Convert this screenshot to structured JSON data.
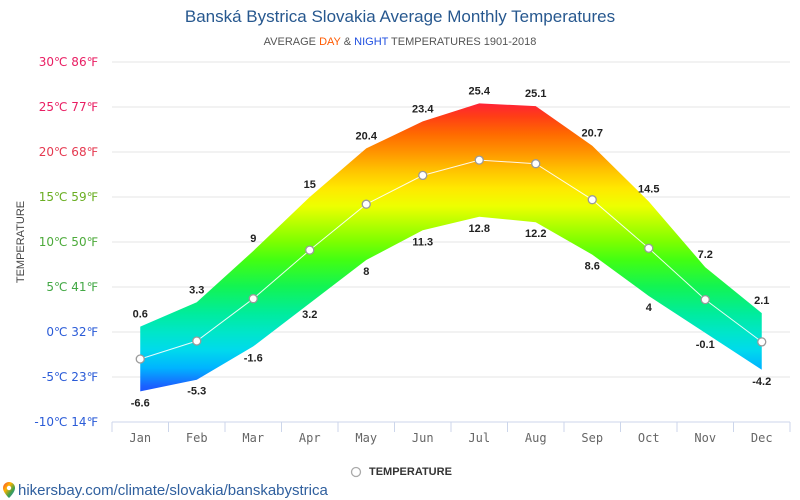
{
  "chart_data": {
    "type": "area",
    "title": "Banská Bystrica Slovakia Average Monthly Temperatures",
    "subtitle": {
      "start": "AVERAGE",
      "middle": "&",
      "end": "TEMPERATURES 1901-2018"
    },
    "ylabel": "TEMPERATURE",
    "ylim": [
      -10,
      30
    ],
    "y_ticks": [
      {
        "value": 30,
        "label": "30℃ 86℉",
        "color": "#e91e63"
      },
      {
        "value": 25,
        "label": "25℃ 77℉",
        "color": "#e91e63"
      },
      {
        "value": 20,
        "label": "20℃ 68℉",
        "color": "#e53950"
      },
      {
        "value": 15,
        "label": "15℃ 59℉",
        "color": "#6aae22"
      },
      {
        "value": 10,
        "label": "10℃ 50℉",
        "color": "#4caa3a"
      },
      {
        "value": 5,
        "label": "5℃ 41℉",
        "color": "#43a845"
      },
      {
        "value": 0,
        "label": "0℃ 32℉",
        "color": "#2a5bd7"
      },
      {
        "value": -5,
        "label": "-5℃ 23℉",
        "color": "#2a5bd7"
      },
      {
        "value": -10,
        "label": "-10℃ 14℉",
        "color": "#2a5bd7"
      }
    ],
    "categories": [
      "Jan",
      "Feb",
      "Mar",
      "Apr",
      "May",
      "Jun",
      "Jul",
      "Aug",
      "Sep",
      "Oct",
      "Nov",
      "Dec"
    ],
    "series": [
      {
        "name": "DAY",
        "values": [
          0.6,
          3.3,
          9,
          15,
          20.4,
          23.4,
          25.4,
          25.1,
          20.7,
          14.5,
          7.2,
          2.1
        ],
        "color": "#ff5a00"
      },
      {
        "name": "NIGHT",
        "values": [
          -6.6,
          -5.3,
          -1.6,
          3.2,
          8,
          11.3,
          12.8,
          12.2,
          8.6,
          4,
          -0.1,
          -4.2
        ],
        "color": "#1f4fe0"
      },
      {
        "name": "TEMPERATURE",
        "values": [
          -3.0,
          -1.0,
          3.7,
          9.1,
          14.2,
          17.4,
          19.1,
          18.7,
          14.7,
          9.3,
          3.6,
          -1.1
        ],
        "color": "#ffffff"
      }
    ],
    "band_colors": [
      {
        "temp": 30,
        "color": "#ff0a5a"
      },
      {
        "temp": 26,
        "color": "#ff1744"
      },
      {
        "temp": 24,
        "color": "#ff3d16"
      },
      {
        "temp": 22,
        "color": "#ff6a00"
      },
      {
        "temp": 20,
        "color": "#ff9400"
      },
      {
        "temp": 18,
        "color": "#ffc200"
      },
      {
        "temp": 16,
        "color": "#ffe800"
      },
      {
        "temp": 14,
        "color": "#eeff00"
      },
      {
        "temp": 12,
        "color": "#b4ff00"
      },
      {
        "temp": 10,
        "color": "#7cff00"
      },
      {
        "temp": 8,
        "color": "#42ff12"
      },
      {
        "temp": 5,
        "color": "#12f454"
      },
      {
        "temp": 2,
        "color": "#00ec9e"
      },
      {
        "temp": 0,
        "color": "#00e6c8"
      },
      {
        "temp": -2,
        "color": "#00daec"
      },
      {
        "temp": -4,
        "color": "#00b4ff"
      },
      {
        "temp": -6,
        "color": "#1a62ff"
      },
      {
        "temp": -8,
        "color": "#2235ff"
      },
      {
        "temp": -10,
        "color": "#2a20ff"
      }
    ],
    "grid": true,
    "legend": "bottom-center"
  },
  "footer": {
    "source": "hikersbay.com/climate/slovakia/banskabystrica",
    "icon": "map-pin-icon"
  }
}
